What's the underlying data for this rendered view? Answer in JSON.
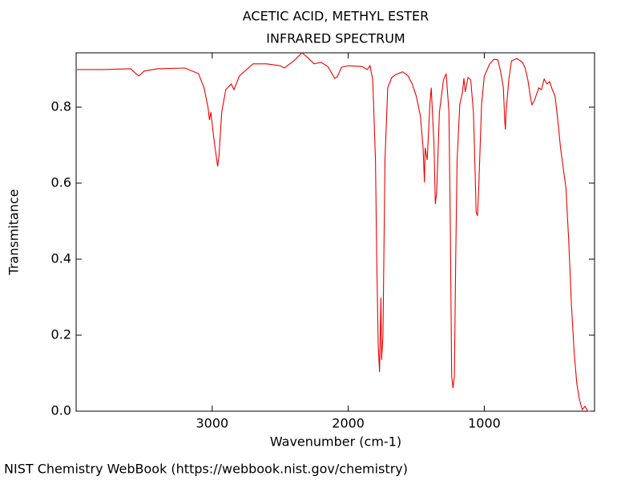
{
  "chart_data": {
    "type": "line",
    "title": "ACETIC ACID, METHYL ESTER",
    "subtitle": "INFRARED SPECTRUM",
    "x_label": "Wavenumber (cm-1)",
    "y_label": "Transmitance",
    "footer": "NIST Chemistry WebBook (https://webbook.nist.gov/chemistry)",
    "xlim": [
      4000,
      190
    ],
    "ylim": [
      0,
      0.943
    ],
    "xticks": [
      3000,
      2000,
      1000
    ],
    "yticks": [
      {
        "value": 0,
        "label": "0.0"
      },
      0.2,
      0.4,
      0.6,
      0.8
    ],
    "series": [
      {
        "name": "spectrum",
        "color": "#ee0000",
        "x": [
          3994,
          3800,
          3600,
          3540,
          3500,
          3400,
          3200,
          3100,
          3060,
          3030,
          3020,
          3010,
          3000,
          2990,
          2960,
          2950,
          2930,
          2900,
          2860,
          2840,
          2800,
          2700,
          2600,
          2500,
          2470,
          2400,
          2340,
          2300,
          2250,
          2200,
          2150,
          2100,
          2080,
          2050,
          2000,
          1900,
          1860,
          1840,
          1820,
          1800,
          1790,
          1780,
          1770,
          1760,
          1755,
          1745,
          1730,
          1710,
          1680,
          1650,
          1600,
          1560,
          1530,
          1500,
          1470,
          1450,
          1440,
          1435,
          1420,
          1400,
          1390,
          1370,
          1360,
          1350,
          1330,
          1300,
          1280,
          1260,
          1250,
          1240,
          1230,
          1220,
          1210,
          1200,
          1180,
          1160,
          1150,
          1140,
          1120,
          1100,
          1080,
          1070,
          1060,
          1050,
          1040,
          1020,
          1000,
          960,
          930,
          900,
          880,
          860,
          850,
          845,
          840,
          820,
          800,
          760,
          720,
          700,
          680,
          660,
          650,
          630,
          600,
          580,
          560,
          540,
          520,
          500,
          480,
          460,
          440,
          420,
          400,
          380,
          360,
          340,
          320,
          300,
          280,
          260,
          240,
          220
        ],
        "values": [
          0.899,
          0.899,
          0.901,
          0.882,
          0.895,
          0.901,
          0.903,
          0.888,
          0.851,
          0.798,
          0.766,
          0.787,
          0.756,
          0.724,
          0.644,
          0.672,
          0.787,
          0.846,
          0.861,
          0.846,
          0.882,
          0.914,
          0.914,
          0.909,
          0.903,
          0.922,
          0.943,
          0.931,
          0.914,
          0.918,
          0.907,
          0.876,
          0.88,
          0.905,
          0.909,
          0.907,
          0.899,
          0.909,
          0.872,
          0.661,
          0.387,
          0.177,
          0.103,
          0.299,
          0.135,
          0.198,
          0.661,
          0.851,
          0.878,
          0.886,
          0.893,
          0.882,
          0.861,
          0.829,
          0.777,
          0.693,
          0.602,
          0.693,
          0.661,
          0.808,
          0.851,
          0.703,
          0.545,
          0.577,
          0.787,
          0.872,
          0.888,
          0.787,
          0.493,
          0.093,
          0.061,
          0.093,
          0.408,
          0.661,
          0.808,
          0.84,
          0.876,
          0.84,
          0.878,
          0.872,
          0.787,
          0.661,
          0.524,
          0.514,
          0.598,
          0.808,
          0.882,
          0.914,
          0.926,
          0.924,
          0.893,
          0.851,
          0.766,
          0.741,
          0.787,
          0.872,
          0.922,
          0.928,
          0.918,
          0.903,
          0.872,
          0.823,
          0.806,
          0.819,
          0.851,
          0.846,
          0.874,
          0.861,
          0.867,
          0.846,
          0.829,
          0.766,
          0.693,
          0.64,
          0.587,
          0.451,
          0.282,
          0.156,
          0.072,
          0.029,
          0.004,
          0.013,
          0,
          0
        ]
      }
    ]
  }
}
